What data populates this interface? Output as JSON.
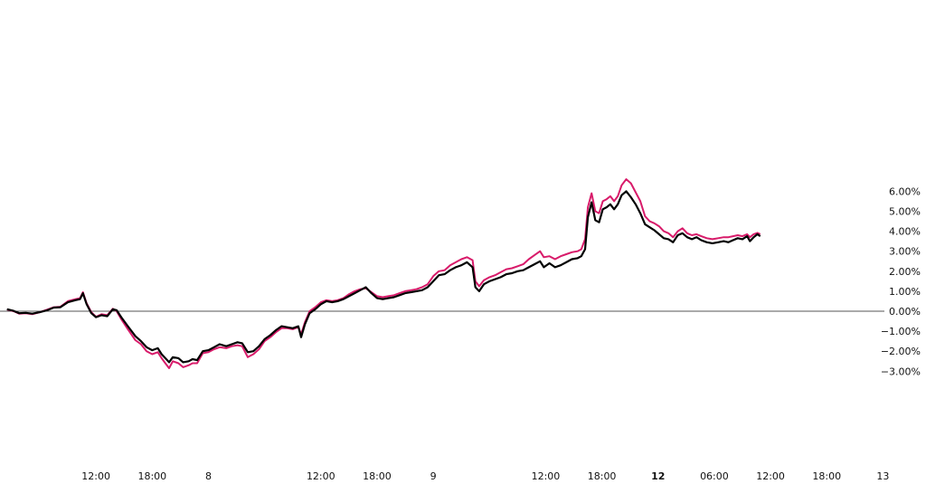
{
  "chart_data": {
    "type": "line",
    "title": "",
    "xlabel": "",
    "ylabel": "",
    "y_axis_position": "right",
    "y_unit": "%",
    "ylim": [
      -3.6,
      7.3
    ],
    "grid": false,
    "legend": "none",
    "zero_line": true,
    "y_ticks": [
      {
        "value": 6,
        "label": "6.00%"
      },
      {
        "value": 5,
        "label": "5.00%"
      },
      {
        "value": 4,
        "label": "4.00%"
      },
      {
        "value": 3,
        "label": "3.00%"
      },
      {
        "value": 2,
        "label": "2.00%"
      },
      {
        "value": 1,
        "label": "1.00%"
      },
      {
        "value": 0,
        "label": "0.00%"
      },
      {
        "value": -1,
        "label": "−1.00%"
      },
      {
        "value": -2,
        "label": "−2.00%"
      },
      {
        "value": -3,
        "label": "−3.00%"
      }
    ],
    "x_ticks": [
      {
        "t": 6,
        "label": "12:00",
        "bold": false
      },
      {
        "t": 12,
        "label": "18:00",
        "bold": false
      },
      {
        "t": 18,
        "label": "8",
        "bold": false
      },
      {
        "t": 30,
        "label": "12:00",
        "bold": false
      },
      {
        "t": 36,
        "label": "18:00",
        "bold": false
      },
      {
        "t": 42,
        "label": "9",
        "bold": false
      },
      {
        "t": 54,
        "label": "12:00",
        "bold": false
      },
      {
        "t": 60,
        "label": "18:00",
        "bold": false
      },
      {
        "t": 66,
        "label": "12",
        "bold": true
      },
      {
        "t": 72,
        "label": "06:00",
        "bold": false
      },
      {
        "t": 78,
        "label": "12:00",
        "bold": false
      },
      {
        "t": 84,
        "label": "18:00",
        "bold": false
      },
      {
        "t": 90,
        "label": "13",
        "bold": false
      }
    ],
    "xlim": [
      -3.5,
      103
    ],
    "series": [
      {
        "color": "#000000",
        "width": 2.2,
        "points": [
          [
            -3.5,
            0.1
          ],
          [
            -2.8,
            0.02
          ],
          [
            -2.2,
            -0.1
          ],
          [
            -1.5,
            -0.08
          ],
          [
            -0.8,
            -0.12
          ],
          [
            0,
            -0.05
          ],
          [
            0.8,
            0.05
          ],
          [
            1.5,
            0.18
          ],
          [
            2.2,
            0.2
          ],
          [
            3,
            0.45
          ],
          [
            3.8,
            0.55
          ],
          [
            4.3,
            0.6
          ],
          [
            4.6,
            0.9
          ],
          [
            5,
            0.35
          ],
          [
            5.5,
            -0.1
          ],
          [
            6,
            -0.3
          ],
          [
            6.6,
            -0.2
          ],
          [
            7.2,
            -0.25
          ],
          [
            7.8,
            0.1
          ],
          [
            8.2,
            0.05
          ],
          [
            8.7,
            -0.3
          ],
          [
            9.4,
            -0.75
          ],
          [
            10.2,
            -1.25
          ],
          [
            10.8,
            -1.5
          ],
          [
            11.4,
            -1.8
          ],
          [
            12,
            -1.95
          ],
          [
            12.6,
            -1.85
          ],
          [
            13,
            -2.15
          ],
          [
            13.4,
            -2.35
          ],
          [
            13.8,
            -2.55
          ],
          [
            14.2,
            -2.3
          ],
          [
            14.8,
            -2.35
          ],
          [
            15.3,
            -2.55
          ],
          [
            15.9,
            -2.5
          ],
          [
            16.3,
            -2.4
          ],
          [
            16.8,
            -2.45
          ],
          [
            17.4,
            -2.0
          ],
          [
            18,
            -1.95
          ],
          [
            18.6,
            -1.8
          ],
          [
            19.2,
            -1.65
          ],
          [
            19.9,
            -1.75
          ],
          [
            20.5,
            -1.65
          ],
          [
            21.1,
            -1.55
          ],
          [
            21.6,
            -1.6
          ],
          [
            22.2,
            -2.05
          ],
          [
            22.8,
            -2.0
          ],
          [
            23.4,
            -1.75
          ],
          [
            24,
            -1.4
          ],
          [
            24.6,
            -1.2
          ],
          [
            25.2,
            -0.95
          ],
          [
            25.8,
            -0.75
          ],
          [
            26.4,
            -0.8
          ],
          [
            27,
            -0.85
          ],
          [
            27.6,
            -0.75
          ],
          [
            27.9,
            -1.3
          ],
          [
            28.3,
            -0.65
          ],
          [
            28.8,
            -0.1
          ],
          [
            29.4,
            0.1
          ],
          [
            30,
            0.35
          ],
          [
            30.6,
            0.5
          ],
          [
            31.2,
            0.45
          ],
          [
            31.8,
            0.5
          ],
          [
            32.4,
            0.6
          ],
          [
            33,
            0.75
          ],
          [
            33.6,
            0.9
          ],
          [
            34.2,
            1.05
          ],
          [
            34.8,
            1.2
          ],
          [
            35.4,
            0.9
          ],
          [
            36,
            0.65
          ],
          [
            36.6,
            0.6
          ],
          [
            37.2,
            0.65
          ],
          [
            37.8,
            0.7
          ],
          [
            38.4,
            0.8
          ],
          [
            39,
            0.9
          ],
          [
            39.6,
            0.95
          ],
          [
            40.2,
            1.0
          ],
          [
            40.8,
            1.05
          ],
          [
            41.4,
            1.2
          ],
          [
            42,
            1.5
          ],
          [
            42.6,
            1.8
          ],
          [
            43.2,
            1.85
          ],
          [
            43.8,
            2.05
          ],
          [
            44.4,
            2.2
          ],
          [
            45,
            2.3
          ],
          [
            45.6,
            2.45
          ],
          [
            46.2,
            2.2
          ],
          [
            46.5,
            1.2
          ],
          [
            46.9,
            1.0
          ],
          [
            47.4,
            1.35
          ],
          [
            48,
            1.5
          ],
          [
            48.6,
            1.6
          ],
          [
            49.2,
            1.7
          ],
          [
            49.8,
            1.85
          ],
          [
            50.4,
            1.9
          ],
          [
            51,
            2.0
          ],
          [
            51.6,
            2.05
          ],
          [
            52.2,
            2.2
          ],
          [
            52.8,
            2.35
          ],
          [
            53.4,
            2.5
          ],
          [
            53.8,
            2.2
          ],
          [
            54.4,
            2.4
          ],
          [
            55,
            2.2
          ],
          [
            55.6,
            2.3
          ],
          [
            56.2,
            2.45
          ],
          [
            56.8,
            2.6
          ],
          [
            57.4,
            2.65
          ],
          [
            57.8,
            2.75
          ],
          [
            58.2,
            3.1
          ],
          [
            58.5,
            4.7
          ],
          [
            58.9,
            5.45
          ],
          [
            59.3,
            4.55
          ],
          [
            59.7,
            4.45
          ],
          [
            60.1,
            5.1
          ],
          [
            60.5,
            5.2
          ],
          [
            60.9,
            5.35
          ],
          [
            61.3,
            5.1
          ],
          [
            61.7,
            5.35
          ],
          [
            62.1,
            5.8
          ],
          [
            62.6,
            6.0
          ],
          [
            63.1,
            5.7
          ],
          [
            63.6,
            5.35
          ],
          [
            64.1,
            4.9
          ],
          [
            64.6,
            4.35
          ],
          [
            65.1,
            4.2
          ],
          [
            65.6,
            4.05
          ],
          [
            66.1,
            3.85
          ],
          [
            66.6,
            3.65
          ],
          [
            67.1,
            3.6
          ],
          [
            67.6,
            3.45
          ],
          [
            68.1,
            3.8
          ],
          [
            68.6,
            3.9
          ],
          [
            69.1,
            3.7
          ],
          [
            69.6,
            3.6
          ],
          [
            70.1,
            3.7
          ],
          [
            70.6,
            3.55
          ],
          [
            71.2,
            3.45
          ],
          [
            71.8,
            3.4
          ],
          [
            72.4,
            3.45
          ],
          [
            73,
            3.5
          ],
          [
            73.5,
            3.45
          ],
          [
            74,
            3.55
          ],
          [
            74.5,
            3.65
          ],
          [
            75,
            3.6
          ],
          [
            75.5,
            3.75
          ],
          [
            75.8,
            3.5
          ],
          [
            76.2,
            3.7
          ],
          [
            76.6,
            3.85
          ],
          [
            76.9,
            3.75
          ]
        ]
      },
      {
        "color": "#d81b6a",
        "width": 2.0,
        "points": [
          [
            -3.5,
            0.08
          ],
          [
            -2.8,
            0.0
          ],
          [
            -2.2,
            -0.12
          ],
          [
            -1.5,
            -0.1
          ],
          [
            -0.8,
            -0.15
          ],
          [
            0,
            -0.05
          ],
          [
            0.8,
            0.08
          ],
          [
            1.5,
            0.2
          ],
          [
            2.2,
            0.22
          ],
          [
            3,
            0.5
          ],
          [
            3.8,
            0.6
          ],
          [
            4.3,
            0.65
          ],
          [
            4.6,
            0.95
          ],
          [
            5,
            0.4
          ],
          [
            5.5,
            -0.05
          ],
          [
            6,
            -0.28
          ],
          [
            6.6,
            -0.15
          ],
          [
            7.2,
            -0.2
          ],
          [
            7.8,
            0.12
          ],
          [
            8.2,
            0.0
          ],
          [
            8.7,
            -0.4
          ],
          [
            9.4,
            -0.9
          ],
          [
            10.2,
            -1.45
          ],
          [
            10.8,
            -1.65
          ],
          [
            11.4,
            -2.0
          ],
          [
            12,
            -2.15
          ],
          [
            12.6,
            -2.05
          ],
          [
            13,
            -2.35
          ],
          [
            13.4,
            -2.6
          ],
          [
            13.8,
            -2.85
          ],
          [
            14.2,
            -2.5
          ],
          [
            14.8,
            -2.6
          ],
          [
            15.3,
            -2.8
          ],
          [
            15.9,
            -2.7
          ],
          [
            16.3,
            -2.6
          ],
          [
            16.8,
            -2.6
          ],
          [
            17.4,
            -2.1
          ],
          [
            18,
            -2.05
          ],
          [
            18.6,
            -1.9
          ],
          [
            19.2,
            -1.8
          ],
          [
            19.9,
            -1.85
          ],
          [
            20.5,
            -1.75
          ],
          [
            21.1,
            -1.7
          ],
          [
            21.6,
            -1.75
          ],
          [
            22.2,
            -2.3
          ],
          [
            22.8,
            -2.15
          ],
          [
            23.4,
            -1.9
          ],
          [
            24,
            -1.5
          ],
          [
            24.6,
            -1.3
          ],
          [
            25.2,
            -1.05
          ],
          [
            25.8,
            -0.85
          ],
          [
            26.4,
            -0.85
          ],
          [
            27,
            -0.9
          ],
          [
            27.6,
            -0.8
          ],
          [
            27.9,
            -1.15
          ],
          [
            28.3,
            -0.55
          ],
          [
            28.8,
            0.0
          ],
          [
            29.4,
            0.2
          ],
          [
            30,
            0.45
          ],
          [
            30.6,
            0.55
          ],
          [
            31.2,
            0.5
          ],
          [
            31.8,
            0.55
          ],
          [
            32.4,
            0.65
          ],
          [
            33,
            0.85
          ],
          [
            33.6,
            1.0
          ],
          [
            34.2,
            1.1
          ],
          [
            34.8,
            1.15
          ],
          [
            35.4,
            0.95
          ],
          [
            36,
            0.75
          ],
          [
            36.6,
            0.7
          ],
          [
            37.2,
            0.75
          ],
          [
            37.8,
            0.8
          ],
          [
            38.4,
            0.9
          ],
          [
            39,
            1.0
          ],
          [
            39.6,
            1.05
          ],
          [
            40.2,
            1.1
          ],
          [
            40.8,
            1.2
          ],
          [
            41.4,
            1.35
          ],
          [
            42,
            1.75
          ],
          [
            42.6,
            2.0
          ],
          [
            43.2,
            2.05
          ],
          [
            43.8,
            2.3
          ],
          [
            44.4,
            2.45
          ],
          [
            45,
            2.6
          ],
          [
            45.6,
            2.7
          ],
          [
            46.2,
            2.55
          ],
          [
            46.5,
            1.5
          ],
          [
            46.9,
            1.25
          ],
          [
            47.4,
            1.55
          ],
          [
            48,
            1.7
          ],
          [
            48.6,
            1.8
          ],
          [
            49.2,
            1.95
          ],
          [
            49.8,
            2.1
          ],
          [
            50.4,
            2.15
          ],
          [
            51,
            2.25
          ],
          [
            51.6,
            2.35
          ],
          [
            52.2,
            2.6
          ],
          [
            52.8,
            2.8
          ],
          [
            53.4,
            3.0
          ],
          [
            53.8,
            2.7
          ],
          [
            54.4,
            2.75
          ],
          [
            55,
            2.6
          ],
          [
            55.6,
            2.75
          ],
          [
            56.2,
            2.85
          ],
          [
            56.8,
            2.95
          ],
          [
            57.4,
            3.0
          ],
          [
            57.8,
            3.1
          ],
          [
            58.2,
            3.6
          ],
          [
            58.5,
            5.2
          ],
          [
            58.9,
            5.9
          ],
          [
            59.3,
            5.0
          ],
          [
            59.7,
            4.9
          ],
          [
            60.1,
            5.5
          ],
          [
            60.5,
            5.6
          ],
          [
            60.9,
            5.75
          ],
          [
            61.3,
            5.5
          ],
          [
            61.7,
            5.75
          ],
          [
            62.1,
            6.3
          ],
          [
            62.6,
            6.6
          ],
          [
            63.1,
            6.4
          ],
          [
            63.6,
            5.95
          ],
          [
            64.1,
            5.5
          ],
          [
            64.6,
            4.75
          ],
          [
            65.1,
            4.5
          ],
          [
            65.6,
            4.4
          ],
          [
            66.1,
            4.25
          ],
          [
            66.6,
            4.0
          ],
          [
            67.1,
            3.9
          ],
          [
            67.6,
            3.7
          ],
          [
            68.1,
            4.0
          ],
          [
            68.6,
            4.15
          ],
          [
            69.1,
            3.9
          ],
          [
            69.6,
            3.8
          ],
          [
            70.1,
            3.85
          ],
          [
            70.6,
            3.75
          ],
          [
            71.2,
            3.65
          ],
          [
            71.8,
            3.6
          ],
          [
            72.4,
            3.65
          ],
          [
            73,
            3.7
          ],
          [
            73.5,
            3.7
          ],
          [
            74,
            3.75
          ],
          [
            74.5,
            3.8
          ],
          [
            75,
            3.75
          ],
          [
            75.5,
            3.85
          ],
          [
            75.8,
            3.7
          ],
          [
            76.2,
            3.85
          ],
          [
            76.6,
            3.92
          ],
          [
            76.9,
            3.85
          ]
        ]
      }
    ]
  }
}
